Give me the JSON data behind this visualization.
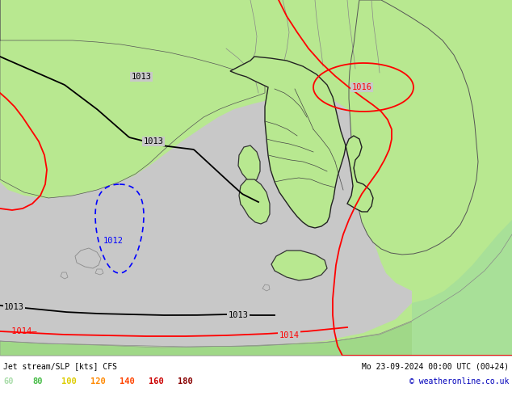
{
  "title_left": "Jet stream/SLP [kts] CFS",
  "title_right": "Mo 23-09-2024 00:00 UTC (00+24)",
  "copyright": "© weatheronline.co.uk",
  "legend_values": [
    "60",
    "80",
    "100",
    "120",
    "140",
    "160",
    "180"
  ],
  "legend_colors": [
    "#aaddaa",
    "#44bb44",
    "#ddcc00",
    "#ff8800",
    "#ff4400",
    "#cc0000",
    "#880000"
  ],
  "bg_color": "#b8e890",
  "land_green": "#b8e890",
  "sea_grey": "#c8c8c8",
  "land_dark_green": "#90cc70",
  "north_africa_green": "#a0e898",
  "figsize": [
    6.34,
    4.9
  ],
  "dpi": 100
}
